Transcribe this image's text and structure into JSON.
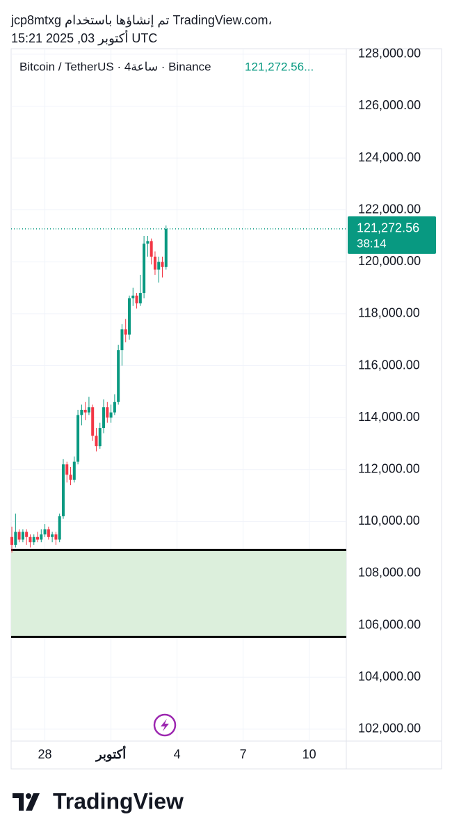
{
  "header": {
    "title": "jcp8mtxg تم إنشاؤها باستخدام TradingView.com،",
    "subtitle": "15:21 2025 ,03 أكتوبر UTC"
  },
  "chart_data": {
    "type": "candlestick",
    "legend_symbol": "Bitcoin / TetherUS · 4ساعة · Binance",
    "legend_price": "121,272.56...",
    "up_color": "#089981",
    "down_color": "#f23645",
    "xlim": [
      -0.2,
      91.1
    ],
    "xticks": [
      {
        "value": 9,
        "label": "28"
      },
      {
        "value": 27,
        "label": "أكتوبر"
      },
      {
        "value": 45,
        "label": "4"
      },
      {
        "value": 63,
        "label": "7"
      },
      {
        "value": 81,
        "label": "10"
      }
    ],
    "ylim": [
      101540,
      128210
    ],
    "yticks": [
      {
        "value": 102000,
        "label": "102,000.00"
      },
      {
        "value": 104000,
        "label": "104,000.00"
      },
      {
        "value": 106000,
        "label": "106,000.00"
      },
      {
        "value": 108000,
        "label": "108,000.00"
      },
      {
        "value": 110000,
        "label": "110,000.00"
      },
      {
        "value": 112000,
        "label": "112,000.00"
      },
      {
        "value": 114000,
        "label": "114,000.00"
      },
      {
        "value": 116000,
        "label": "116,000.00"
      },
      {
        "value": 118000,
        "label": "118,000.00"
      },
      {
        "value": 120000,
        "label": "120,000.00"
      },
      {
        "value": 122000,
        "label": "122,000.00"
      },
      {
        "value": 124000,
        "label": "124,000.00"
      },
      {
        "value": 126000,
        "label": "126,000.00"
      },
      {
        "value": 128000,
        "label": "128,000.00"
      }
    ],
    "grid": true,
    "open": [
      109400,
      109100,
      109600,
      109300,
      109600,
      109400,
      109200,
      109400,
      109300,
      109500,
      109700,
      109400,
      109500,
      109300,
      110200,
      112200,
      111800,
      111600,
      112300,
      114100,
      114300,
      114200,
      114400,
      113300,
      112900,
      113600,
      114400,
      114000,
      114200,
      114600,
      116600,
      117400,
      117200,
      118600,
      118700,
      118400,
      118800,
      120700,
      120800,
      120200,
      119700,
      120000,
      119800
    ],
    "high": [
      109800,
      110300,
      109700,
      109700,
      109700,
      109500,
      109500,
      109600,
      109700,
      109900,
      109800,
      109600,
      109600,
      110300,
      112400,
      112300,
      112100,
      112500,
      114300,
      114500,
      114600,
      114800,
      114500,
      113600,
      113800,
      114700,
      114600,
      114500,
      114900,
      116800,
      117600,
      117800,
      118700,
      119000,
      118800,
      119500,
      121000,
      121000,
      120900,
      120400,
      120200,
      120200,
      121400
    ],
    "low": [
      108800,
      109000,
      109200,
      109200,
      109100,
      109000,
      109100,
      109200,
      109200,
      109400,
      109300,
      109200,
      109100,
      109200,
      110100,
      111500,
      111400,
      111500,
      112200,
      113700,
      113900,
      114100,
      113100,
      112700,
      112800,
      113400,
      113800,
      113800,
      114100,
      114500,
      116000,
      116900,
      117000,
      118300,
      118200,
      118300,
      118600,
      120200,
      119900,
      119500,
      119200,
      119400,
      119700
    ],
    "close": [
      109100,
      109600,
      109300,
      109600,
      109400,
      109200,
      109400,
      109300,
      109500,
      109700,
      109400,
      109500,
      109300,
      110200,
      112200,
      111800,
      111600,
      112300,
      114100,
      114300,
      114200,
      114400,
      113300,
      112900,
      113600,
      114400,
      114000,
      114200,
      114600,
      116600,
      117400,
      117200,
      118600,
      118700,
      118400,
      118800,
      120700,
      120800,
      120200,
      119700,
      120000,
      119800,
      121272.56
    ],
    "last_price": {
      "value": 121272.56,
      "label": "121,272.56"
    },
    "countdown": "38:14",
    "zone": {
      "low": 105550,
      "high": 108900,
      "color": "#dcefdc"
    }
  },
  "footer": {
    "brand": "TradingView"
  }
}
